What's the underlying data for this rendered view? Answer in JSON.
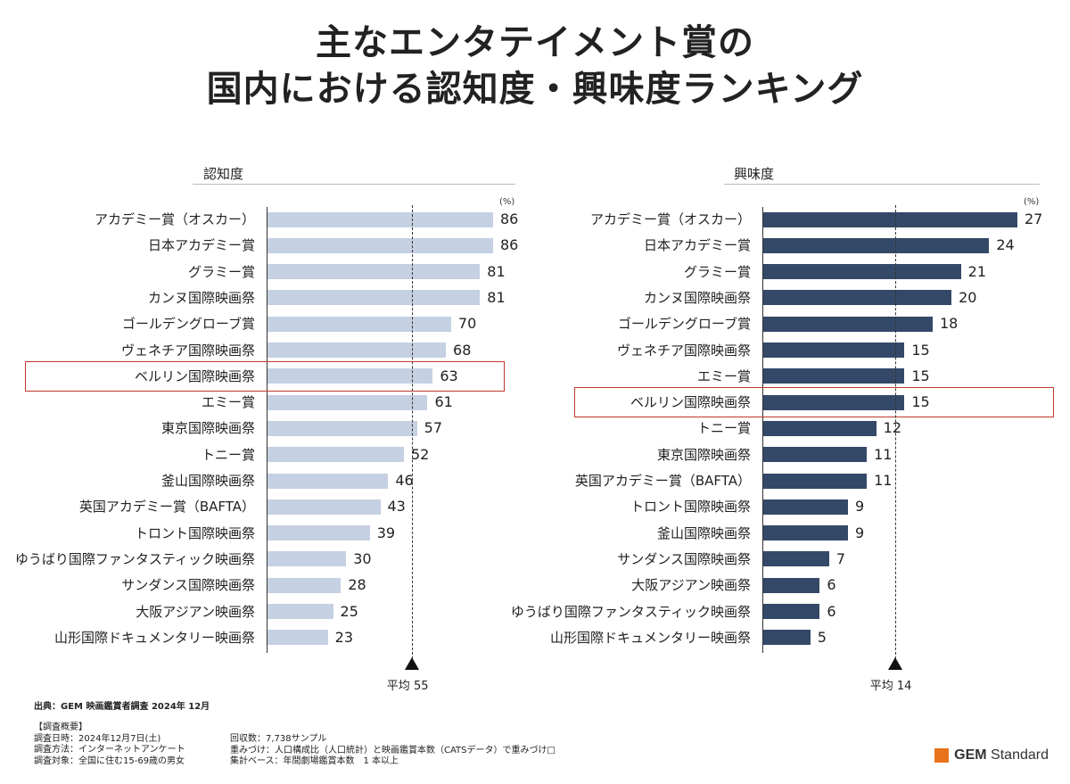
{
  "title_line1": "主なエンタテイメント賞の",
  "title_line2": "国内における認知度・興味度ランキング",
  "colors": {
    "left_bar": "#c5d0e2",
    "right_bar": "#344968",
    "highlight": "#c0392b",
    "logo": "#e8731a"
  },
  "chart_data": [
    {
      "type": "bar",
      "orientation": "horizontal",
      "title": "認知度",
      "unit": "(%)",
      "categories": [
        "アカデミー賞（オスカー）",
        "日本アカデミー賞",
        "グラミー賞",
        "カンヌ国際映画祭",
        "ゴールデングローブ賞",
        "ヴェネチア国際映画祭",
        "ベルリン国際映画祭",
        "エミー賞",
        "東京国際映画祭",
        "トニー賞",
        "釜山国際映画祭",
        "英国アカデミー賞（BAFTA）",
        "トロント国際映画祭",
        "ゆうばり国際ファンタスティック映画祭",
        "サンダンス国際映画祭",
        "大阪アジアン映画祭",
        "山形国際ドキュメンタリー映画祭"
      ],
      "values": [
        86,
        86,
        81,
        81,
        70,
        68,
        63,
        61,
        57,
        52,
        46,
        43,
        39,
        30,
        28,
        25,
        23
      ],
      "average": 55,
      "average_label": "平均",
      "highlight": "ベルリン国際映画祭",
      "xlim": [
        0,
        86
      ]
    },
    {
      "type": "bar",
      "orientation": "horizontal",
      "title": "興味度",
      "unit": "(%)",
      "categories": [
        "アカデミー賞（オスカー）",
        "日本アカデミー賞",
        "グラミー賞",
        "カンヌ国際映画祭",
        "ゴールデングローブ賞",
        "ヴェネチア国際映画祭",
        "エミー賞",
        "ベルリン国際映画祭",
        "トニー賞",
        "東京国際映画祭",
        "英国アカデミー賞（BAFTA）",
        "トロント国際映画祭",
        "釜山国際映画祭",
        "サンダンス国際映画祭",
        "大阪アジアン映画祭",
        "ゆうばり国際ファンタスティック映画祭",
        "山形国際ドキュメンタリー映画祭"
      ],
      "values": [
        27,
        24,
        21,
        20,
        18,
        15,
        15,
        15,
        12,
        11,
        11,
        9,
        9,
        7,
        6,
        6,
        5
      ],
      "average": 14,
      "average_label": "平均",
      "highlight": "ベルリン国際映画祭",
      "xlim": [
        0,
        27
      ]
    }
  ],
  "source": "出典：GEM 映画鑑賞者調査 2024年 12月",
  "notes_left": [
    "【調査概要】",
    "調査日時：2024年12月7日(土)",
    "調査方法：インターネットアンケート",
    "調査対象：全国に住む15-69歳の男女"
  ],
  "notes_right": [
    "回収数：7,738サンプル",
    "重みづけ：人口構成比（人口統計）と映画鑑賞本数（CATSデータ）で重みづけ□",
    "集計ベース：年間劇場鑑賞本数　1 本以上"
  ],
  "logo": {
    "bold": "GEM",
    "rest": " Standard"
  }
}
